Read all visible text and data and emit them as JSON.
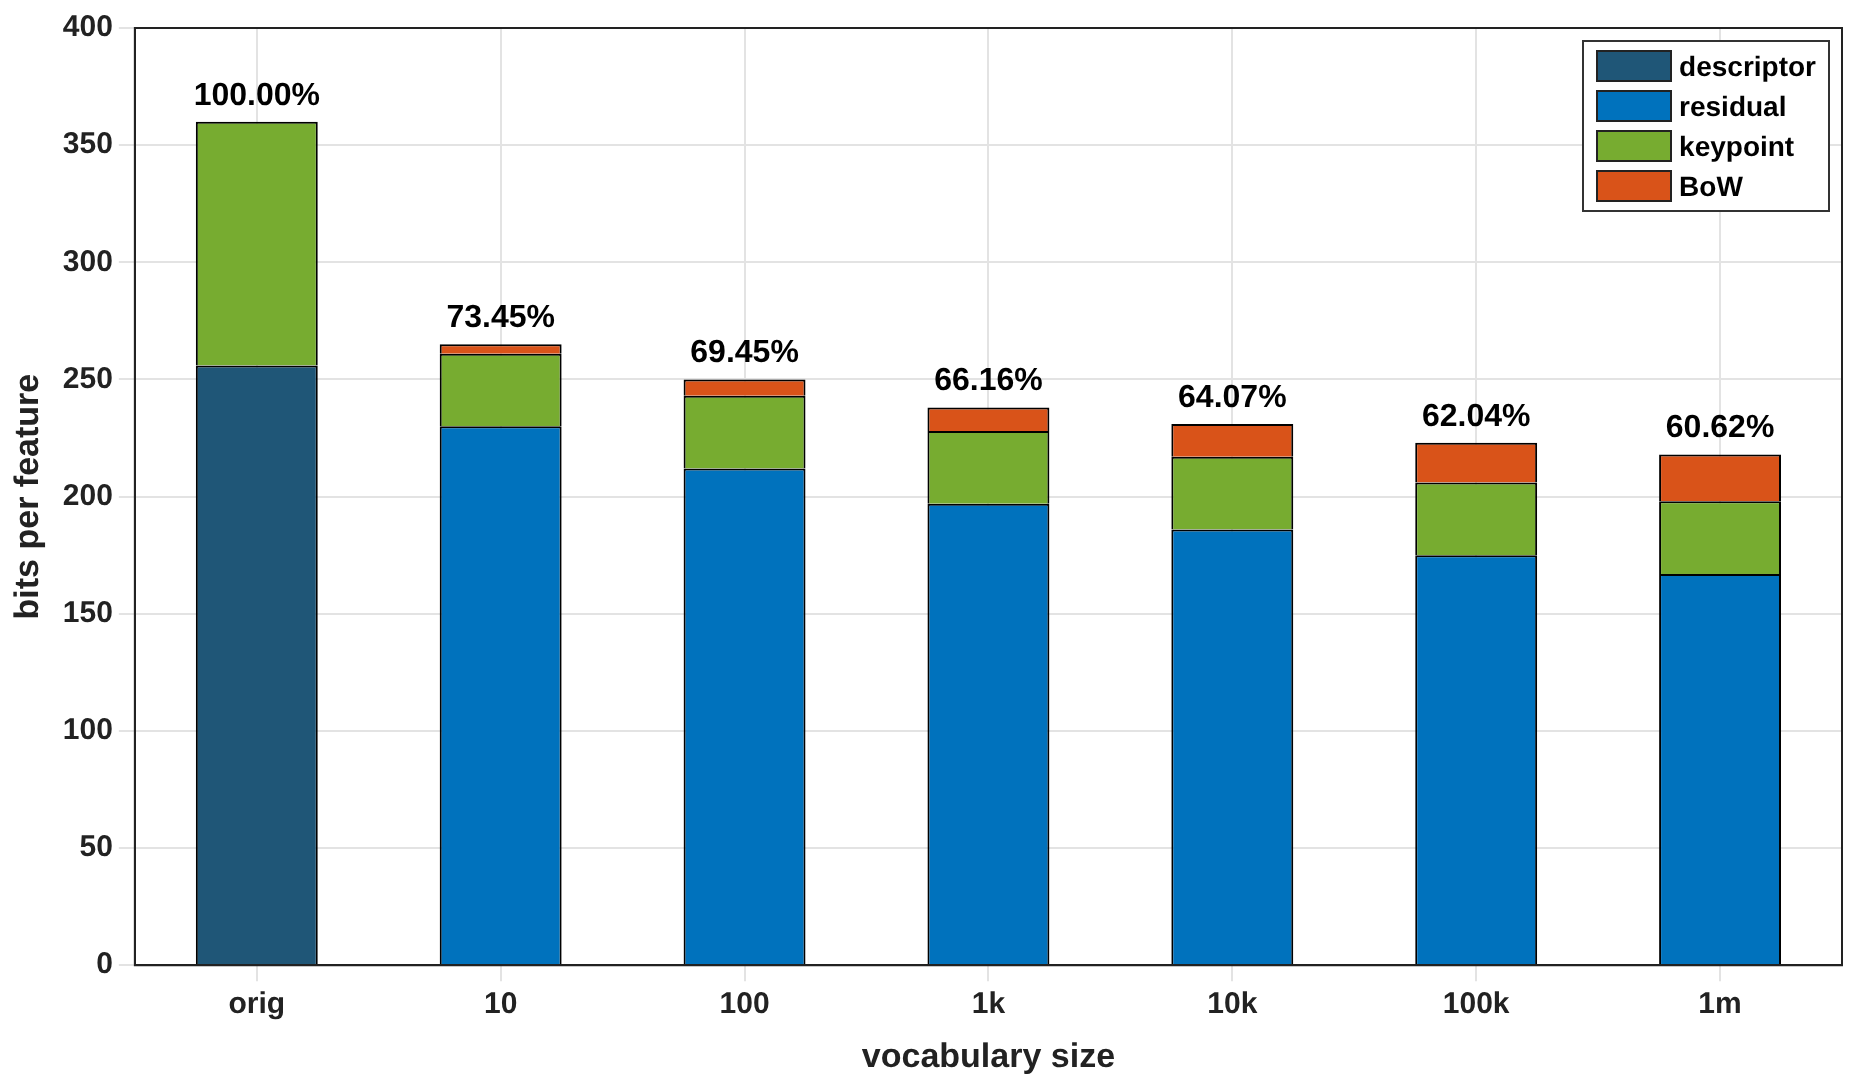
{
  "chart_data": {
    "type": "bar",
    "stacked": true,
    "xlabel": "vocabulary size",
    "ylabel": "bits per feature",
    "categories": [
      "orig",
      "10",
      "100",
      "1k",
      "10k",
      "100k",
      "1m"
    ],
    "series": [
      {
        "name": "descriptor",
        "color": "#1f5677",
        "values": [
          256,
          null,
          null,
          null,
          null,
          null,
          null
        ]
      },
      {
        "name": "residual",
        "color": "#0072bd",
        "values": [
          null,
          230,
          212,
          197,
          186,
          175,
          167
        ]
      },
      {
        "name": "keypoint",
        "color": "#77ac30",
        "values": [
          104,
          31,
          31,
          31,
          31,
          31,
          31
        ]
      },
      {
        "name": "BoW",
        "color": "#d95319",
        "values": [
          null,
          4,
          7,
          10,
          14,
          17,
          20
        ]
      }
    ],
    "annotations": [
      {
        "text": "100.00%",
        "x": "orig",
        "y": 360
      },
      {
        "text": "73.45%",
        "x": "10",
        "y": 265
      },
      {
        "text": "69.45%",
        "x": "100",
        "y": 250
      },
      {
        "text": "66.16%",
        "x": "1k",
        "y": 238
      },
      {
        "text": "64.07%",
        "x": "10k",
        "y": 231
      },
      {
        "text": "62.04%",
        "x": "100k",
        "y": 223
      },
      {
        "text": "60.62%",
        "x": "1m",
        "y": 218
      }
    ],
    "ylim": [
      0,
      400
    ],
    "yticks": [
      0,
      50,
      100,
      150,
      200,
      250,
      300,
      350,
      400
    ],
    "grid": true,
    "legend": "top right"
  }
}
